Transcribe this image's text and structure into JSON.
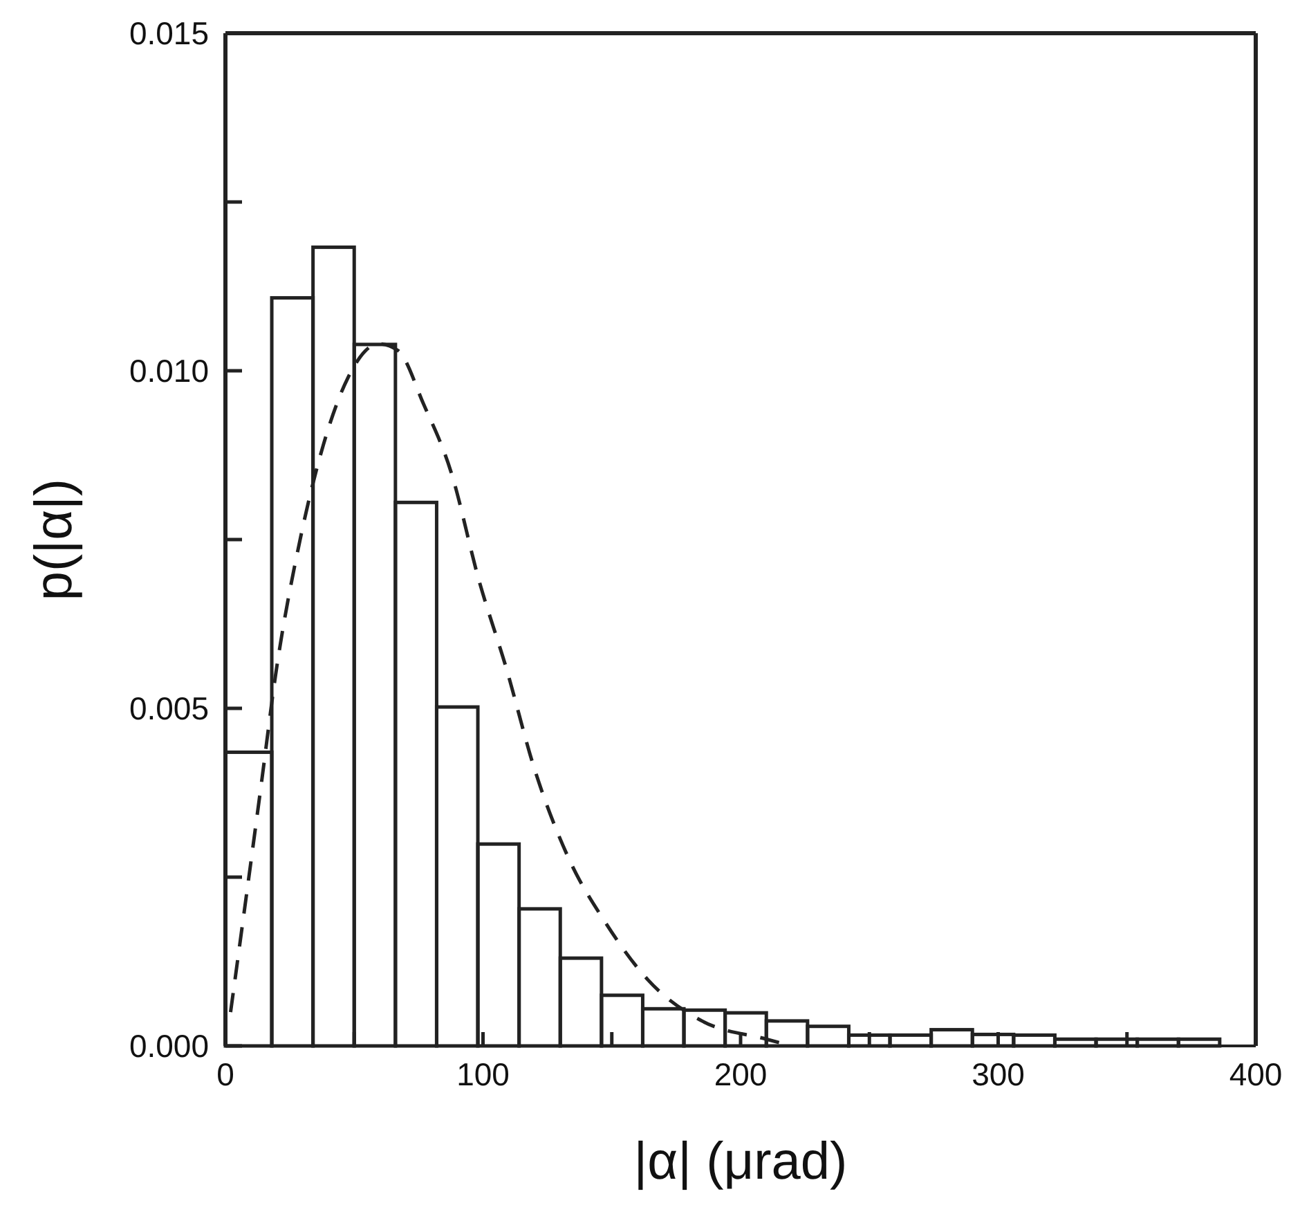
{
  "chart_data": {
    "type": "histogram",
    "xlabel": "|α| (μrad)",
    "ylabel": "p(|α|)",
    "xlim": [
      0,
      400
    ],
    "ylim": [
      0,
      0.015
    ],
    "xticks": [
      0,
      {
        "value": 50,
        "label": null
      },
      100,
      {
        "value": 150,
        "label": null
      },
      200,
      {
        "value": 250,
        "label": null
      },
      300,
      {
        "value": 350,
        "label": null
      },
      400
    ],
    "yticks": [
      {
        "value": 0,
        "label": "0.000"
      },
      {
        "value": 0.0025,
        "label": null
      },
      0.005,
      {
        "value": 0.0075,
        "label": null
      },
      {
        "value": 0.01,
        "label": "0.010"
      },
      {
        "value": 0.0125,
        "label": null
      },
      0.015
    ],
    "series": [
      {
        "color": "#222222",
        "bins": [
          0,
          18,
          34,
          50,
          66,
          82,
          98,
          114,
          130,
          146,
          162,
          178,
          194,
          210,
          226,
          242,
          258,
          274,
          290,
          306,
          322,
          338,
          354,
          370,
          386
        ],
        "values": [
          0.00435,
          0.01108,
          0.01183,
          0.01039,
          0.00805,
          0.00502,
          0.00299,
          0.00203,
          0.0013,
          0.00075,
          0.00055,
          0.00053,
          0.00049,
          0.00037,
          0.00029,
          0.00016,
          0.00016,
          0.00024,
          0.00017,
          0.00016,
          0.0001,
          0.0001,
          0.0001,
          0.0001
        ]
      },
      {
        "type": "line",
        "color": "#222222",
        "line_style": "dashed",
        "marker": "none",
        "x": [
          2,
          14,
          19.5,
          29,
          38,
          47.6,
          59.5,
          67,
          77,
          87.6,
          98.4,
          109,
          120,
          133,
          148,
          164,
          185,
          210,
          220
        ],
        "values": [
          0.0005,
          0.0039,
          0.0055,
          0.0075,
          0.0089,
          0.0099,
          0.0104,
          0.0103,
          0.0095,
          0.0085,
          0.0069,
          0.0056,
          0.0041,
          0.0028,
          0.0018,
          0.00098,
          0.00037,
          0.0001,
          0
        ]
      }
    ]
  }
}
